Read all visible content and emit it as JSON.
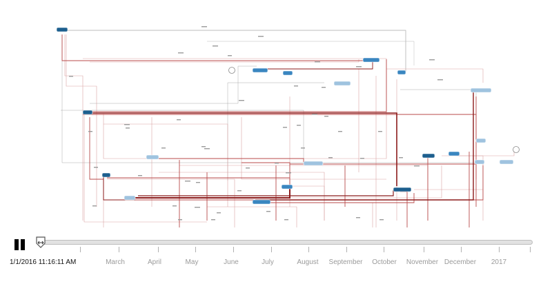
{
  "timeline": {
    "current_time": "1/1/2016 11:16:11 AM",
    "months": [
      "March",
      "April",
      "May",
      "June",
      "July",
      "August",
      "September",
      "October",
      "November",
      "December",
      "2017"
    ],
    "tick_count": 13
  },
  "controls": {
    "state": "playing",
    "play_icon": "pause-icon"
  },
  "colors": {
    "edge_dark": "#8b1a1a",
    "edge_mid": "#b84a4a",
    "edge_light": "#d9a3a3",
    "edge_gray": "#a9a9a9",
    "node_dark": "#1d5f8e",
    "node_mid": "#3a86c0",
    "node_light": "#9fc3df"
  }
}
